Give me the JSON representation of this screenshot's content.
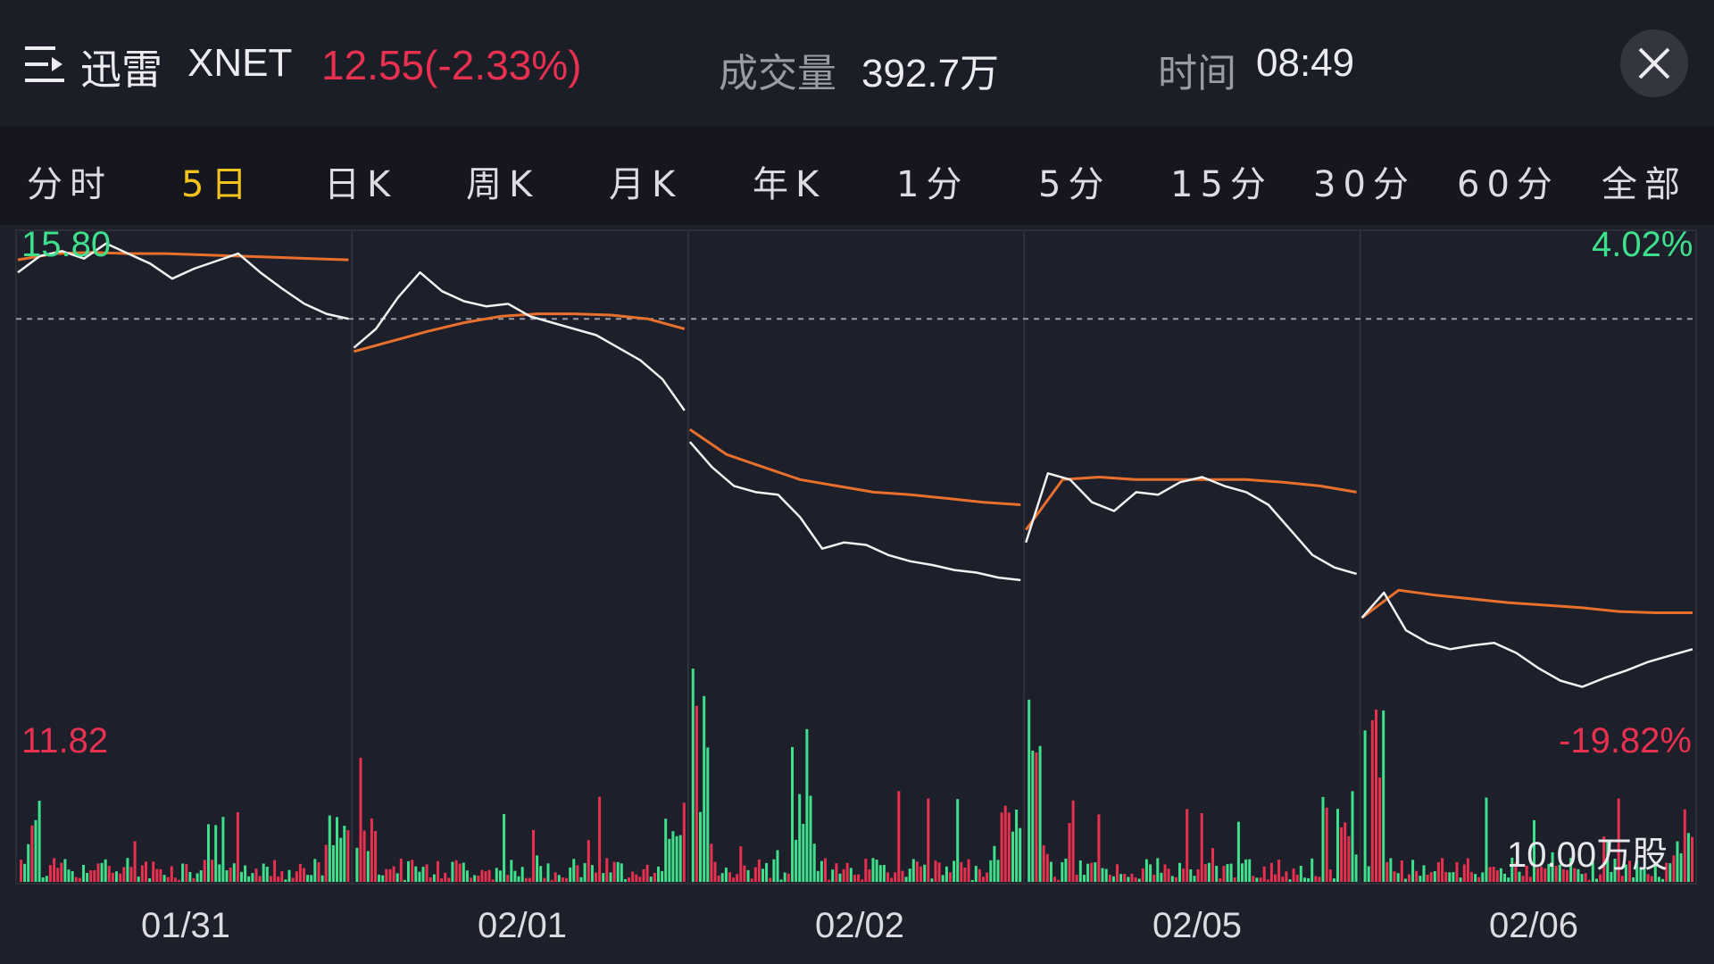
{
  "header": {
    "name": "迅雷",
    "ticker": "XNET",
    "price_change": "12.55(-2.33%)",
    "volume_label": "成交量",
    "volume_value": "392.7万",
    "time_label": "时间",
    "time_value": "08:49"
  },
  "tabs": [
    {
      "label": "分时",
      "active": false
    },
    {
      "label": "5日",
      "active": true
    },
    {
      "label": "日K",
      "active": false
    },
    {
      "label": "周K",
      "active": false
    },
    {
      "label": "月K",
      "active": false
    },
    {
      "label": "年K",
      "active": false
    },
    {
      "label": "1分",
      "active": false
    },
    {
      "label": "5分",
      "active": false
    },
    {
      "label": "15分",
      "active": false
    },
    {
      "label": "30分",
      "active": false
    },
    {
      "label": "60分",
      "active": false
    },
    {
      "label": "全部",
      "active": false
    }
  ],
  "chart": {
    "top_price": "15.80",
    "top_pct": "4.02%",
    "bottom_price": "11.82",
    "bottom_pct": "-19.82%",
    "volume_scale": "10.00万股",
    "dates": [
      "01/31",
      "02/01",
      "02/02",
      "02/05",
      "02/06"
    ]
  },
  "colors": {
    "up": "#3fe08c",
    "down": "#e8304f",
    "price_line": "#f2f2f2",
    "avg_line": "#e8702c",
    "active_tab": "#f3c21c"
  },
  "chart_data": {
    "type": "line",
    "x": [
      "01/31",
      "02/01",
      "02/02",
      "02/05",
      "02/06"
    ],
    "ylim": [
      11.82,
      15.8
    ],
    "pct_range": [
      "-19.82%",
      "4.02%"
    ],
    "reference_price": 15.18,
    "series": [
      {
        "values": [
          [
            15.55,
            15.68,
            15.72,
            15.66,
            15.78,
            15.7,
            15.62,
            15.5,
            15.58,
            15.64,
            15.7,
            15.55,
            15.42,
            15.3,
            15.22,
            15.18
          ],
          [
            14.95,
            15.1,
            15.35,
            15.55,
            15.4,
            15.32,
            15.28,
            15.3,
            15.2,
            15.15,
            15.1,
            15.05,
            14.95,
            14.85,
            14.7,
            14.45
          ],
          [
            14.2,
            14.0,
            13.85,
            13.8,
            13.78,
            13.6,
            13.35,
            13.4,
            13.38,
            13.3,
            13.25,
            13.22,
            13.18,
            13.16,
            13.12,
            13.1
          ],
          [
            13.4,
            13.95,
            13.9,
            13.72,
            13.65,
            13.8,
            13.78,
            13.88,
            13.92,
            13.85,
            13.8,
            13.7,
            13.5,
            13.3,
            13.2,
            13.15
          ],
          [
            12.8,
            13.0,
            12.7,
            12.6,
            12.55,
            12.58,
            12.6,
            12.52,
            12.4,
            12.3,
            12.25,
            12.32,
            12.38,
            12.45,
            12.5,
            12.55
          ]
        ]
      },
      {
        "values": [
          [
            15.65,
            15.7,
            15.71,
            15.7,
            15.7,
            15.69,
            15.68,
            15.67,
            15.66,
            15.65
          ],
          [
            14.92,
            15.0,
            15.08,
            15.15,
            15.2,
            15.22,
            15.22,
            15.21,
            15.18,
            15.1
          ],
          [
            14.3,
            14.1,
            14.0,
            13.9,
            13.85,
            13.8,
            13.78,
            13.75,
            13.72,
            13.7
          ],
          [
            13.5,
            13.9,
            13.92,
            13.9,
            13.9,
            13.9,
            13.9,
            13.88,
            13.85,
            13.8
          ],
          [
            12.8,
            13.02,
            12.98,
            12.95,
            12.92,
            12.9,
            12.88,
            12.85,
            12.84,
            12.84
          ]
        ]
      }
    ]
  }
}
